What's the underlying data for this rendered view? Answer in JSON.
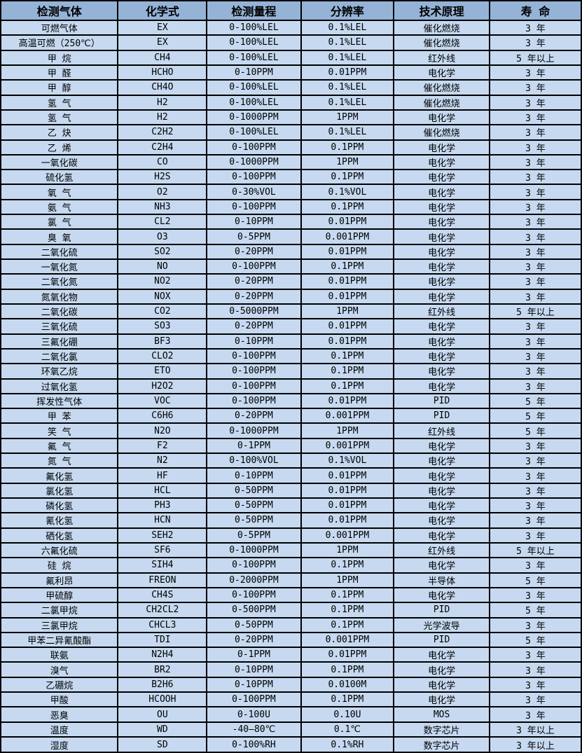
{
  "colors": {
    "header_bg": "#95b3d7",
    "row_bg": "#c6d9f0",
    "border": "#000000",
    "text": "#000000"
  },
  "table": {
    "headers": [
      "检测气体",
      "化学式",
      "检测量程",
      "分辨率",
      "技术原理",
      "寿 命"
    ],
    "rows": [
      [
        "可燃气体",
        "EX",
        "0-100%LEL",
        "0.1%LEL",
        "催化燃烧",
        "3 年"
      ],
      [
        "高温可燃（250℃）",
        "EX",
        "0-100%LEL",
        "0.1%LEL",
        "催化燃烧",
        "3 年"
      ],
      [
        "甲 烷",
        "CH4",
        "0-100%LEL",
        "0.1%LEL",
        "红外线",
        "5 年以上"
      ],
      [
        "甲 醛",
        "HCHO",
        "0-10PPM",
        "0.01PPM",
        "电化学",
        "3 年"
      ],
      [
        "甲 醇",
        "CH4O",
        "0-100%LEL",
        "0.1%LEL",
        "催化燃烧",
        "3 年"
      ],
      [
        "氢 气",
        "H2",
        "0-100%LEL",
        "0.1%LEL",
        "催化燃烧",
        "3 年"
      ],
      [
        "氢 气",
        "H2",
        "0-1000PPM",
        "1PPM",
        "电化学",
        "3 年"
      ],
      [
        "乙 炔",
        "C2H2",
        "0-100%LEL",
        "0.1%LEL",
        "催化燃烧",
        "3 年"
      ],
      [
        "乙 烯",
        "C2H4",
        "0-100PPM",
        "0.1PPM",
        "电化学",
        "3 年"
      ],
      [
        "一氧化碳",
        "CO",
        "0-1000PPM",
        "1PPM",
        "电化学",
        "3 年"
      ],
      [
        "硫化氢",
        "H2S",
        "0-100PPM",
        "0.1PPM",
        "电化学",
        "3 年"
      ],
      [
        "氧 气",
        "O2",
        "0-30%VOL",
        "0.1%VOL",
        "电化学",
        "3 年"
      ],
      [
        "氨 气",
        "NH3",
        "0-100PPM",
        "0.1PPM",
        "电化学",
        "3 年"
      ],
      [
        "氯 气",
        "CL2",
        "0-10PPM",
        "0.01PPM",
        "电化学",
        "3 年"
      ],
      [
        "臭 氧",
        "O3",
        "0-5PPM",
        "0.001PPM",
        "电化学",
        "3 年"
      ],
      [
        "二氧化硫",
        "SO2",
        "0-20PPM",
        "0.01PPM",
        "电化学",
        "3 年"
      ],
      [
        "一氧化氮",
        "NO",
        "0-100PPM",
        "0.1PPM",
        "电化学",
        "3 年"
      ],
      [
        "二氧化氮",
        "NO2",
        "0-20PPM",
        "0.01PPM",
        "电化学",
        "3 年"
      ],
      [
        "氮氧化物",
        "NOX",
        "0-20PPM",
        "0.01PPM",
        "电化学",
        "3 年"
      ],
      [
        "二氧化碳",
        "CO2",
        "0-5000PPM",
        "1PPM",
        "红外线",
        "5 年以上"
      ],
      [
        "三氧化硫",
        "SO3",
        "0-20PPM",
        "0.01PPM",
        "电化学",
        "3 年"
      ],
      [
        "三氟化硼",
        "BF3",
        "0-10PPM",
        "0.01PPM",
        "电化学",
        "3 年"
      ],
      [
        "二氧化氯",
        "CLO2",
        "0-100PPM",
        "0.1PPM",
        "电化学",
        "3 年"
      ],
      [
        "环氧乙烷",
        "ETO",
        "0-100PPM",
        "0.1PPM",
        "电化学",
        "3 年"
      ],
      [
        "过氧化氢",
        "H2O2",
        "0-100PPM",
        "0.1PPM",
        "电化学",
        "3 年"
      ],
      [
        "挥发性气体",
        "VOC",
        "0-100PPM",
        "0.01PPM",
        "PID",
        "5 年"
      ],
      [
        "甲 苯",
        "C6H6",
        "0-20PPM",
        "0.001PPM",
        "PID",
        "5 年"
      ],
      [
        "笑 气",
        "N2O",
        "0-1000PPM",
        "1PPM",
        "红外线",
        "5 年"
      ],
      [
        "氟 气",
        "F2",
        "0-1PPM",
        "0.001PPM",
        "电化学",
        "3 年"
      ],
      [
        "氮 气",
        "N2",
        "0-100%VOL",
        "0.1%VOL",
        "电化学",
        "3 年"
      ],
      [
        "氟化氢",
        "HF",
        "0-10PPM",
        "0.01PPM",
        "电化学",
        "3 年"
      ],
      [
        "氯化氢",
        "HCL",
        "0-50PPM",
        "0.01PPM",
        "电化学",
        "3 年"
      ],
      [
        "磷化氢",
        "PH3",
        "0-50PPM",
        "0.01PPM",
        "电化学",
        "3 年"
      ],
      [
        "氰化氢",
        "HCN",
        "0-50PPM",
        "0.01PPM",
        "电化学",
        "3 年"
      ],
      [
        "硒化氢",
        "SEH2",
        "0-5PPM",
        "0.001PPM",
        "电化学",
        "3 年"
      ],
      [
        "六氟化硫",
        "SF6",
        "0-1000PPM",
        "1PPM",
        "红外线",
        "5 年以上"
      ],
      [
        "硅 烷",
        "SIH4",
        "0-100PPM",
        "0.1PPM",
        "电化学",
        "3 年"
      ],
      [
        "氟利昂",
        "FREON",
        "0-2000PPM",
        "1PPM",
        "半导体",
        "5 年"
      ],
      [
        "甲硫醇",
        "CH4S",
        "0-100PPM",
        "0.1PPM",
        "电化学",
        "3 年"
      ],
      [
        "二氯甲烷",
        "CH2CL2",
        "0-500PPM",
        "0.1PPM",
        "PID",
        "5 年"
      ],
      [
        "三氯甲烷",
        "CHCL3",
        "0-50PPM",
        "0.1PPM",
        "光学波导",
        "3 年"
      ],
      [
        "甲苯二异氰酸酯",
        "TDI",
        "0-20PPM",
        "0.001PPM",
        "PID",
        "5 年"
      ],
      [
        "联氨",
        "N2H4",
        "0-1PPM",
        "0.01PPM",
        "电化学",
        "3 年"
      ],
      [
        "溴气",
        "BR2",
        "0-10PPM",
        "0.1PPM",
        "电化学",
        "3 年"
      ],
      [
        "乙硼烷",
        "B2H6",
        "0-10PPM",
        "0.0100M",
        "电化学",
        "3 年"
      ],
      [
        "甲酸",
        "HCOOH",
        "0-100PPM",
        "0.1PPM",
        "电化学",
        "3 年"
      ],
      [
        "恶臭",
        "OU",
        "0-100U",
        "0.10U",
        "MOS",
        "3 年"
      ],
      [
        "温度",
        "WD",
        "-40—80℃",
        "0.1℃",
        "数字芯片",
        "3 年以上"
      ],
      [
        "湿度",
        "SD",
        "0-100%RH",
        "0.1%RH",
        "数字芯片",
        "3 年以上"
      ]
    ]
  }
}
